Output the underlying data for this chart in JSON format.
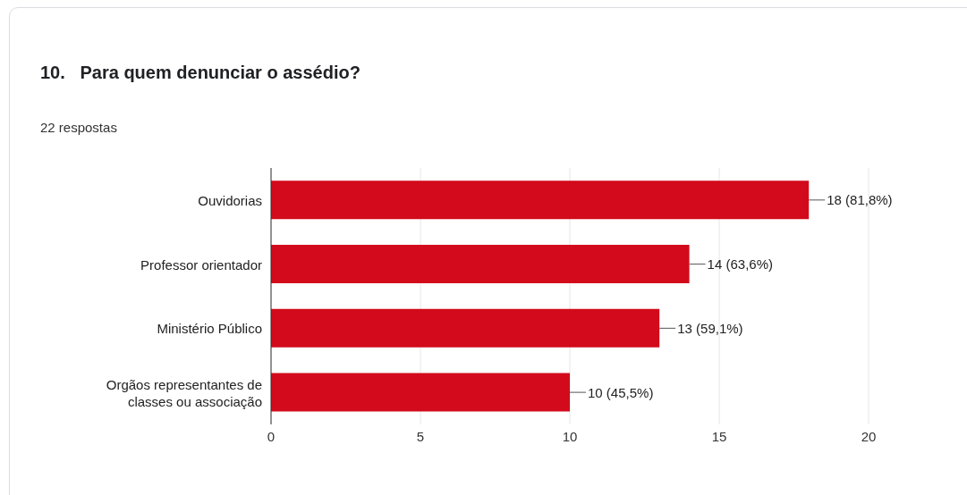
{
  "chart_data": {
    "type": "bar",
    "orientation": "horizontal",
    "title": "10.   Para quem denunciar o assédio?",
    "subtitle": "22 respostas",
    "categories": [
      "Ouvidorias",
      "Professor orientador",
      "Ministério Público",
      "Orgãos representantes de classes ou associação"
    ],
    "values": [
      18,
      14,
      13,
      10
    ],
    "color": "#d20a1b",
    "value_labels": [
      "18 (81,8%)",
      "14 (63,6%)",
      "13 (59,1%)",
      "10 (45,5%)"
    ],
    "xlim": [
      0,
      20
    ],
    "xticks": [
      0,
      5,
      10,
      15,
      20
    ],
    "grid": "x"
  }
}
